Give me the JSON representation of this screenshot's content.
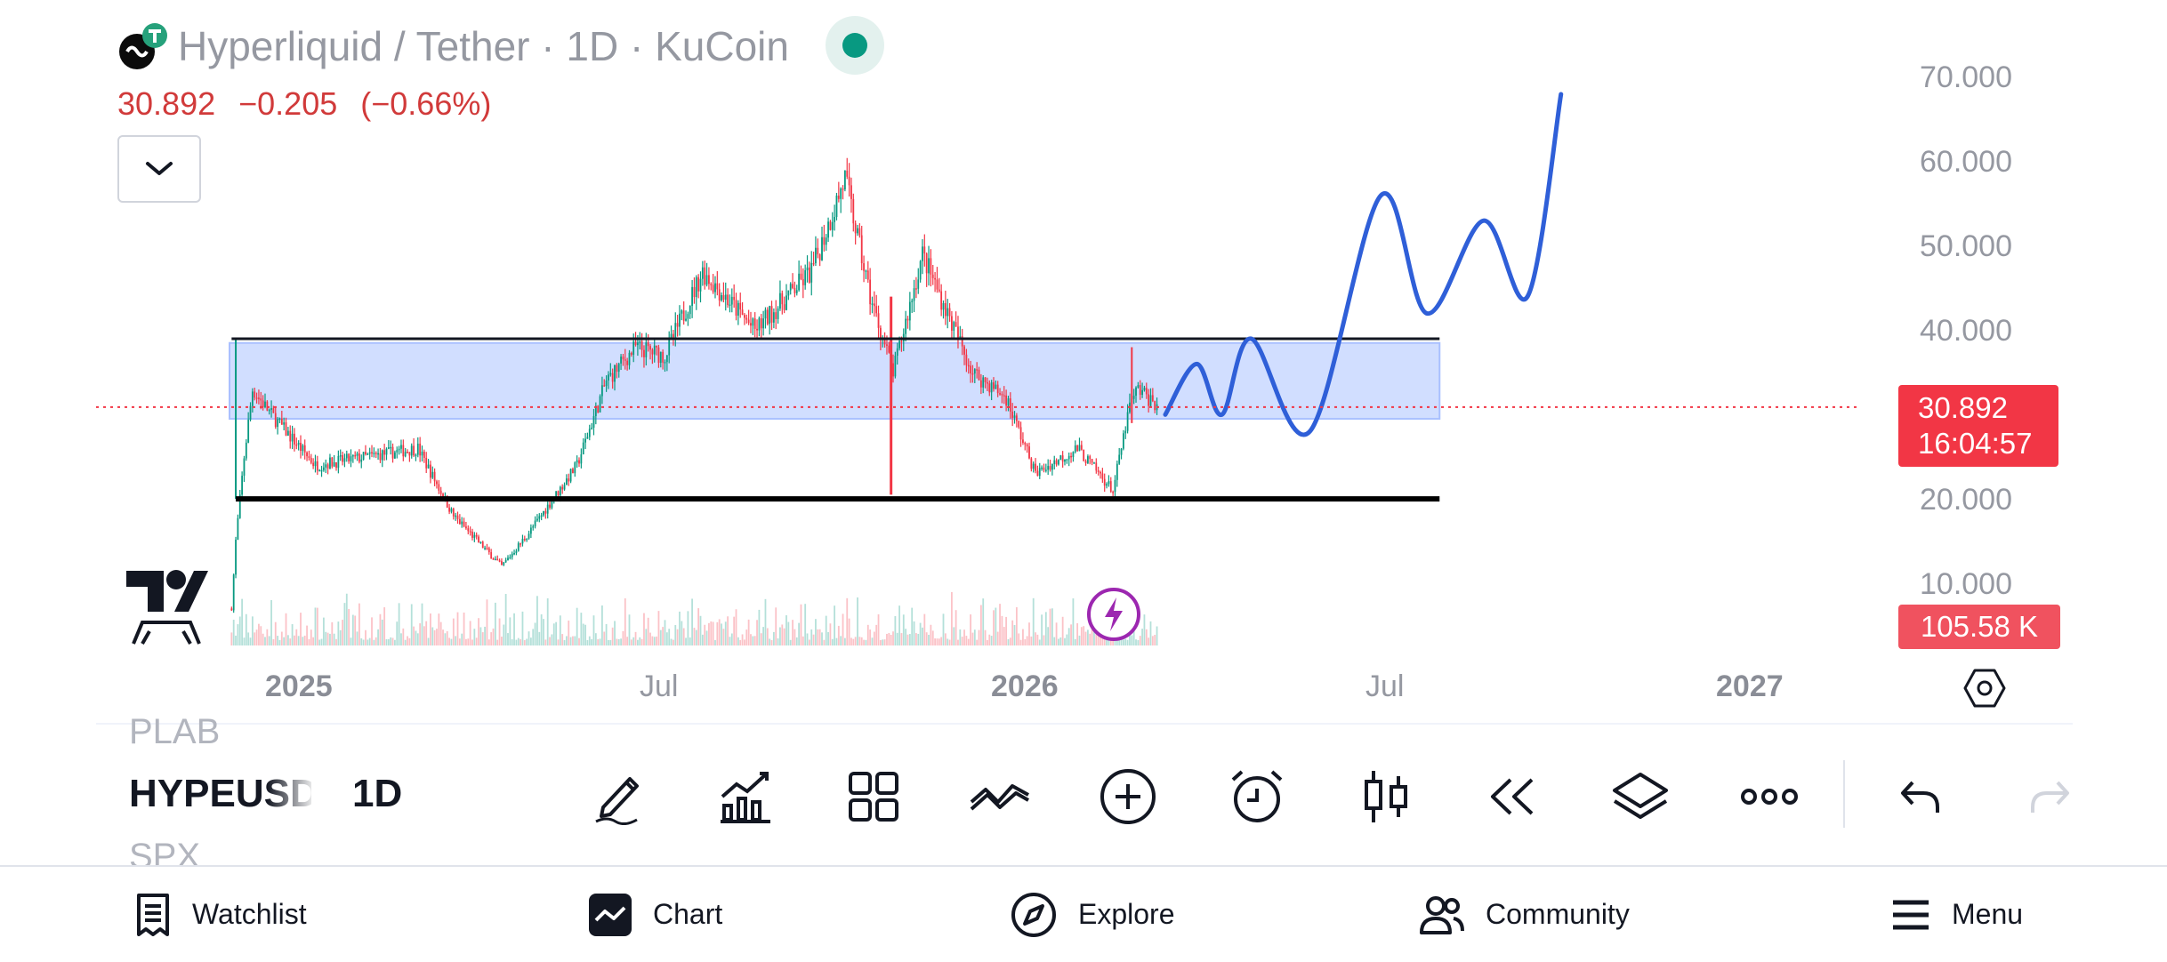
{
  "header": {
    "pair": "Hyperliquid / Tether",
    "sep1": "·",
    "interval": "1D",
    "sep2": "·",
    "exchange": "KuCoin",
    "last": "30.892",
    "change": "−0.205",
    "change_pct": "(−0.66%)"
  },
  "yaxis": [
    "70.000",
    "60.000",
    "50.000",
    "40.000",
    "20.000",
    "10.000"
  ],
  "xaxis": [
    "2025",
    "Jul",
    "2026",
    "Jul",
    "2027"
  ],
  "price_tag": {
    "price": "30.892",
    "countdown": "16:04:57",
    "color": "#f23645"
  },
  "volume_tag": "105.58 K",
  "symbols": {
    "prev": "PLAB",
    "current": "HYPEUSD",
    "interval": "1D",
    "next": "SPX"
  },
  "toolbar": [
    "pencil-icon",
    "indicators-icon",
    "grid-layout-icon",
    "compare-icon",
    "add-icon",
    "alert-icon",
    "candle-style-icon",
    "replay-icon",
    "layers-icon",
    "more-icon",
    "undo-icon",
    "redo-icon"
  ],
  "nav": {
    "watchlist": "Watchlist",
    "chart": "Chart",
    "explore": "Explore",
    "community": "Community",
    "menu": "Menu"
  },
  "colors": {
    "up": "#089981",
    "down": "#f23645",
    "forecast": "#2f5fd8",
    "zone": "#c9d8ff"
  },
  "chart_data": {
    "type": "candlestick",
    "symbol": "Hyperliquid / Tether",
    "interval": "1D",
    "last_price": 30.892,
    "ylim": [
      5,
      75
    ],
    "yticks": [
      10,
      20,
      40,
      50,
      60,
      70
    ],
    "xticks": [
      "2025",
      "Jul",
      "2026",
      "Jul",
      "2027"
    ],
    "price_path": [
      {
        "date": "2024-11-29",
        "price": 7
      },
      {
        "date": "2024-12-01",
        "price": 15
      },
      {
        "date": "2024-12-05",
        "price": 25
      },
      {
        "date": "2024-12-09",
        "price": 33
      },
      {
        "date": "2024-12-18",
        "price": 30
      },
      {
        "date": "2025-01-08",
        "price": 24
      },
      {
        "date": "2025-02-01",
        "price": 25
      },
      {
        "date": "2025-02-26",
        "price": 26
      },
      {
        "date": "2025-03-15",
        "price": 18
      },
      {
        "date": "2025-04-07",
        "price": 12
      },
      {
        "date": "2025-04-20",
        "price": 16
      },
      {
        "date": "2025-05-13",
        "price": 24
      },
      {
        "date": "2025-05-27",
        "price": 34
      },
      {
        "date": "2025-06-10",
        "price": 38
      },
      {
        "date": "2025-06-24",
        "price": 37
      },
      {
        "date": "2025-07-12",
        "price": 47
      },
      {
        "date": "2025-08-06",
        "price": 40
      },
      {
        "date": "2025-09-02",
        "price": 47
      },
      {
        "date": "2025-09-18",
        "price": 58
      },
      {
        "date": "2025-09-30",
        "price": 44
      },
      {
        "date": "2025-10-11",
        "price": 35
      },
      {
        "date": "2025-10-25",
        "price": 49
      },
      {
        "date": "2025-11-18",
        "price": 35
      },
      {
        "date": "2025-12-04",
        "price": 32
      },
      {
        "date": "2025-12-18",
        "price": 23
      },
      {
        "date": "2026-01-07",
        "price": 26
      },
      {
        "date": "2026-01-24",
        "price": 21
      },
      {
        "date": "2026-02-01",
        "price": 31
      },
      {
        "date": "2026-02-05",
        "price": 33
      },
      {
        "date": "2026-02-15",
        "price": 30.892
      }
    ],
    "annotations": {
      "zone": {
        "from": "2024-11-28",
        "to": "2026-06-29",
        "low": 29.5,
        "high": 38.5
      },
      "support": {
        "from": "2024-12-01",
        "to": "2026-06-29",
        "price": 20
      },
      "resistance": {
        "from": "2024-11-29",
        "to": "2026-06-29",
        "price": 39
      },
      "forecast": [
        {
          "date": "2026-02-18",
          "price": 30
        },
        {
          "date": "2026-03-05",
          "price": 36
        },
        {
          "date": "2026-03-17",
          "price": 30
        },
        {
          "date": "2026-03-31",
          "price": 39
        },
        {
          "date": "2026-04-28",
          "price": 28
        },
        {
          "date": "2026-06-01",
          "price": 56
        },
        {
          "date": "2026-06-23",
          "price": 42
        },
        {
          "date": "2026-07-20",
          "price": 53
        },
        {
          "date": "2026-08-10",
          "price": 44
        },
        {
          "date": "2026-08-26",
          "price": 68
        }
      ]
    }
  }
}
